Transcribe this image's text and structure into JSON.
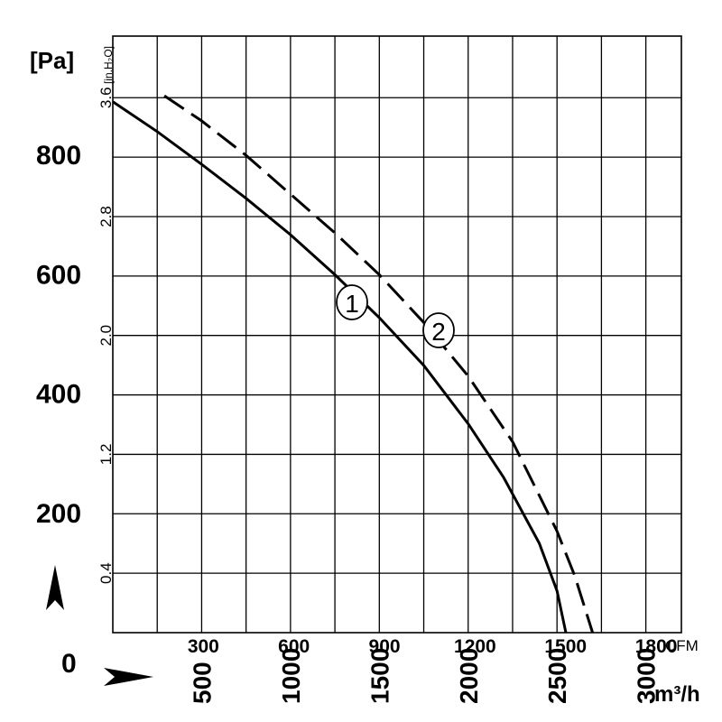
{
  "chart_data": {
    "type": "line",
    "title": "",
    "y_unit_left": "[Pa]",
    "y_unit_right": "[in.H₂O]",
    "x_unit_top": "CFM",
    "x_unit_bottom": "m³/h",
    "ylim_pa": [
      0,
      1000
    ],
    "xlim_m3h": [
      0,
      3200
    ],
    "yticks_pa": [
      "200",
      "400",
      "600",
      "800"
    ],
    "yticks_pa_values": [
      200,
      400,
      600,
      800
    ],
    "yzero_label": "0",
    "yticks_inh2o": [
      "0.4",
      "1.2",
      "2.0",
      "2.8",
      "3.6"
    ],
    "yticks_inh2o_values": [
      0.4,
      1.2,
      2.0,
      2.8,
      3.6
    ],
    "xticks_cfm": [
      "300",
      "600",
      "900",
      "1200",
      "1500",
      "1800"
    ],
    "xticks_cfm_values": [
      300,
      600,
      900,
      1200,
      1500,
      1800
    ],
    "xticks_m3h": [
      "500",
      "1000",
      "1500",
      "2000",
      "2500",
      "3000"
    ],
    "xticks_m3h_values": [
      500,
      1000,
      1500,
      2000,
      2500,
      3000
    ],
    "grid": true,
    "series": [
      {
        "name": "1",
        "style": "solid",
        "x": [
          0,
          250,
          500,
          750,
          1000,
          1250,
          1500,
          1750,
          2000,
          2200,
          2400,
          2500,
          2550
        ],
        "y": [
          890,
          840,
          785,
          728,
          667,
          600,
          528,
          448,
          350,
          260,
          150,
          70,
          0
        ]
      },
      {
        "name": "2",
        "style": "dashed",
        "x": [
          290,
          500,
          750,
          1000,
          1250,
          1500,
          1750,
          2000,
          2250,
          2500,
          2600,
          2700
        ],
        "y": [
          900,
          858,
          800,
          735,
          670,
          600,
          520,
          430,
          320,
          170,
          95,
          0
        ]
      }
    ]
  }
}
